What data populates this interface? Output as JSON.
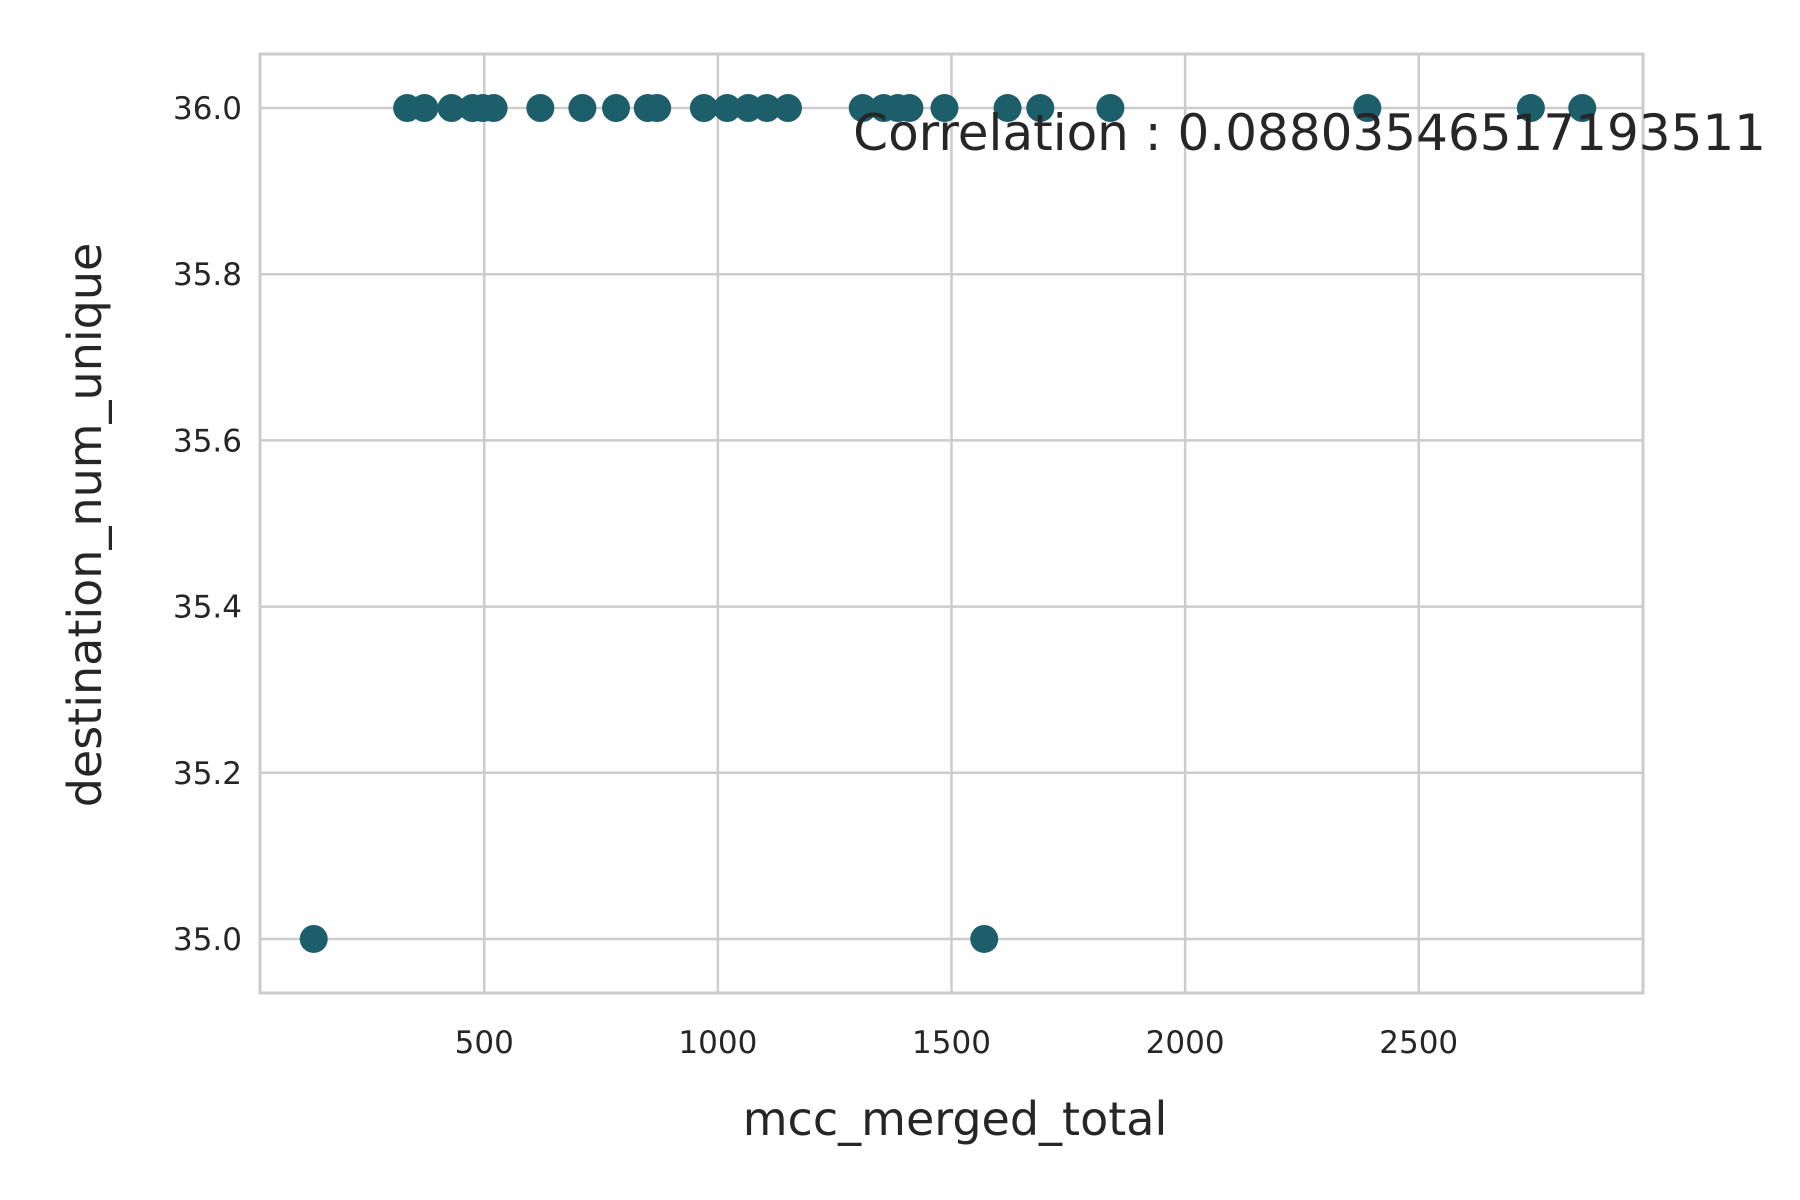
{
  "chart_data": {
    "type": "scatter",
    "xlabel": "mcc_merged_total",
    "ylabel": "destination_num_unique",
    "xlim": [
      20,
      2980
    ],
    "ylim": [
      34.935,
      36.065
    ],
    "x_ticks": [
      500,
      1000,
      1500,
      2000,
      2500
    ],
    "x_tick_labels": [
      "500",
      "1000",
      "1500",
      "2000",
      "2500"
    ],
    "y_ticks": [
      35.0,
      35.2,
      35.4,
      35.6,
      35.8,
      36.0
    ],
    "y_tick_labels": [
      "35.0",
      "35.2",
      "35.4",
      "35.6",
      "35.8",
      "36.0"
    ],
    "grid": true,
    "marker_color": "#1d5e6b",
    "annotation": "Correlation : 0.0880354651719351​1",
    "series": [
      {
        "points": [
          {
            "x": 135,
            "y": 35.0
          },
          {
            "x": 1570,
            "y": 35.0
          },
          {
            "x": 335,
            "y": 36.0
          },
          {
            "x": 372,
            "y": 36.0
          },
          {
            "x": 430,
            "y": 36.0
          },
          {
            "x": 475,
            "y": 36.0
          },
          {
            "x": 497,
            "y": 36.0
          },
          {
            "x": 520,
            "y": 36.0
          },
          {
            "x": 620,
            "y": 36.0
          },
          {
            "x": 710,
            "y": 36.0
          },
          {
            "x": 782,
            "y": 36.0
          },
          {
            "x": 850,
            "y": 36.0
          },
          {
            "x": 870,
            "y": 36.0
          },
          {
            "x": 970,
            "y": 36.0
          },
          {
            "x": 1020,
            "y": 36.0
          },
          {
            "x": 1065,
            "y": 36.0
          },
          {
            "x": 1105,
            "y": 36.0
          },
          {
            "x": 1150,
            "y": 36.0
          },
          {
            "x": 1310,
            "y": 36.0
          },
          {
            "x": 1355,
            "y": 36.0
          },
          {
            "x": 1385,
            "y": 36.0
          },
          {
            "x": 1410,
            "y": 36.0
          },
          {
            "x": 1485,
            "y": 36.0
          },
          {
            "x": 1620,
            "y": 36.0
          },
          {
            "x": 1690,
            "y": 36.0
          },
          {
            "x": 1840,
            "y": 36.0
          },
          {
            "x": 2390,
            "y": 36.0
          },
          {
            "x": 2740,
            "y": 36.0
          },
          {
            "x": 2850,
            "y": 36.0
          }
        ]
      }
    ]
  }
}
